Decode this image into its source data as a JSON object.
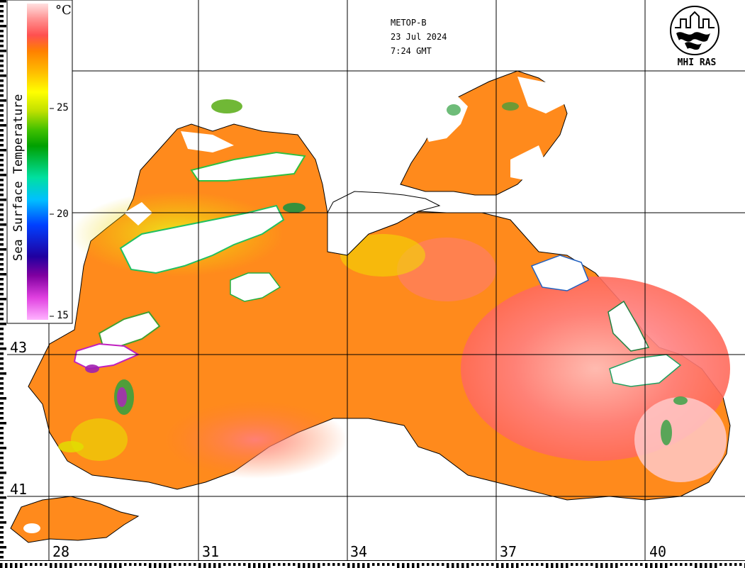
{
  "header": {
    "satellite": "METOP-B",
    "date": "23 Jul 2024",
    "time": "7:24 GMT"
  },
  "logo": {
    "text": "MHI RAS",
    "icon": "mhi-ras-logo-icon"
  },
  "legend": {
    "title": "Sea Surface Temperature",
    "unit": "°C",
    "ticks": [
      "25",
      "20",
      "15"
    ],
    "min": 15,
    "max": 30,
    "colors": [
      "#ffb3ff",
      "#e040e0",
      "#8000a0",
      "#2000a0",
      "#0040ff",
      "#00c0ff",
      "#00e0a0",
      "#00a000",
      "#40c000",
      "#c0e000",
      "#ffff00",
      "#ffc000",
      "#ff8000",
      "#ff5050",
      "#ff9090",
      "#ffe0e0"
    ]
  },
  "grid": {
    "latitudes": [
      "43",
      "41"
    ],
    "longitudes": [
      "28",
      "31",
      "34",
      "37",
      "40"
    ]
  },
  "colors": {
    "sea_warm": "#ff8c1a",
    "sea_hot": "#ff7070",
    "sea_hottest": "#ffb0b0",
    "sea_cool": "#e6e600",
    "cloud": "#ffffff",
    "coast": "#000000"
  }
}
